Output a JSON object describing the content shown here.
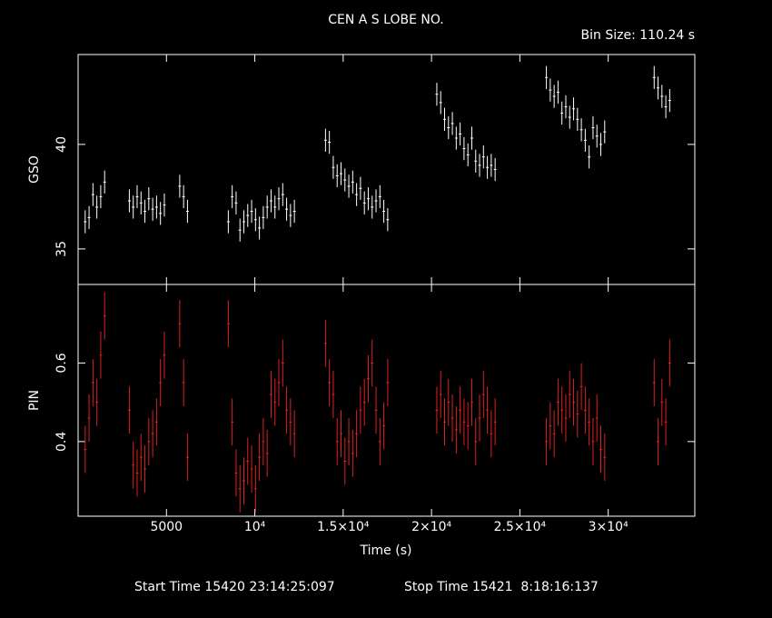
{
  "chart_data": {
    "type": "errorbar",
    "title": "CEN A S LOBE NO.",
    "subtitle": "Bin Size: 110.24 s",
    "xlabel": "Time (s)",
    "xlim": [
      0,
      34900
    ],
    "xticks": [
      5000,
      {
        "value": 10000,
        "label": "10⁴"
      },
      {
        "value": 15000,
        "label": "1.5×10⁴"
      },
      {
        "value": 20000,
        "label": "2×10⁴"
      },
      {
        "value": 25000,
        "label": "2.5×10⁴"
      },
      {
        "value": 30000,
        "label": "3×10⁴"
      }
    ],
    "x": [
      400,
      620,
      840,
      1060,
      1280,
      1500,
      2900,
      3120,
      3340,
      3560,
      3780,
      4000,
      4220,
      4440,
      4660,
      4880,
      5750,
      5970,
      6190,
      8500,
      8720,
      8940,
      9160,
      9380,
      9600,
      9820,
      10040,
      10260,
      10480,
      10700,
      10920,
      11140,
      11360,
      11580,
      11800,
      12020,
      12240,
      14000,
      14220,
      14440,
      14660,
      14880,
      15100,
      15320,
      15540,
      15760,
      15980,
      16200,
      16420,
      16640,
      16860,
      17080,
      17300,
      17520,
      20300,
      20520,
      20740,
      20960,
      21180,
      21400,
      21620,
      21840,
      22060,
      22280,
      22500,
      22720,
      22940,
      23160,
      23380,
      23600,
      26500,
      26720,
      26940,
      27160,
      27380,
      27600,
      27820,
      28040,
      28260,
      28480,
      28700,
      28920,
      29140,
      29360,
      29580,
      29800,
      32600,
      32820,
      33040,
      33260,
      33480
    ],
    "panels": [
      {
        "ylabel": "GSO",
        "color": "#ffffff",
        "ylim": [
          33.3,
          44.3
        ],
        "yticks": [
          35,
          40
        ],
        "error": 0.55,
        "values": [
          36.3,
          36.5,
          37.6,
          37.0,
          37.5,
          38.2,
          37.3,
          37.0,
          37.5,
          37.2,
          36.8,
          37.4,
          36.9,
          37.0,
          36.7,
          37.1,
          38.0,
          37.5,
          36.8,
          36.3,
          37.5,
          37.2,
          35.9,
          36.3,
          36.6,
          36.8,
          36.4,
          36.0,
          36.5,
          37.0,
          37.3,
          37.0,
          37.4,
          37.6,
          36.9,
          36.6,
          36.8,
          40.2,
          40.1,
          38.9,
          38.5,
          38.6,
          38.3,
          38.0,
          38.2,
          37.6,
          37.9,
          37.2,
          37.4,
          37.0,
          37.3,
          37.5,
          36.8,
          36.4,
          42.4,
          42.0,
          41.2,
          40.8,
          41.0,
          40.3,
          40.5,
          39.8,
          39.5,
          40.3,
          39.2,
          39.0,
          39.4,
          38.9,
          39.0,
          38.8,
          43.2,
          42.6,
          42.3,
          42.5,
          41.5,
          41.8,
          41.3,
          41.7,
          41.2,
          40.7,
          40.2,
          39.4,
          40.8,
          40.4,
          40.0,
          40.6,
          43.2,
          42.7,
          42.3,
          41.8,
          42.1
        ]
      },
      {
        "ylabel": "PIN",
        "color": "#dd2020",
        "ylim": [
          0.21,
          0.8
        ],
        "yticks": [
          0.4,
          0.6
        ],
        "error": 0.06,
        "values": [
          0.38,
          0.46,
          0.55,
          0.5,
          0.62,
          0.72,
          0.48,
          0.34,
          0.32,
          0.36,
          0.33,
          0.4,
          0.42,
          0.45,
          0.55,
          0.62,
          0.7,
          0.55,
          0.36,
          0.7,
          0.45,
          0.32,
          0.28,
          0.3,
          0.35,
          0.33,
          0.28,
          0.36,
          0.4,
          0.37,
          0.52,
          0.5,
          0.55,
          0.6,
          0.48,
          0.45,
          0.42,
          0.65,
          0.55,
          0.52,
          0.4,
          0.42,
          0.35,
          0.4,
          0.37,
          0.42,
          0.48,
          0.5,
          0.56,
          0.6,
          0.48,
          0.4,
          0.44,
          0.55,
          0.48,
          0.52,
          0.45,
          0.5,
          0.46,
          0.43,
          0.48,
          0.45,
          0.44,
          0.5,
          0.4,
          0.46,
          0.52,
          0.48,
          0.42,
          0.45,
          0.4,
          0.44,
          0.42,
          0.5,
          0.48,
          0.46,
          0.52,
          0.5,
          0.47,
          0.54,
          0.48,
          0.45,
          0.4,
          0.46,
          0.38,
          0.36,
          0.55,
          0.4,
          0.5,
          0.45,
          0.6
        ]
      }
    ],
    "start_time": "Start Time 15420 23:14:25:097",
    "stop_time": "Stop Time 15421  8:18:16:137"
  }
}
